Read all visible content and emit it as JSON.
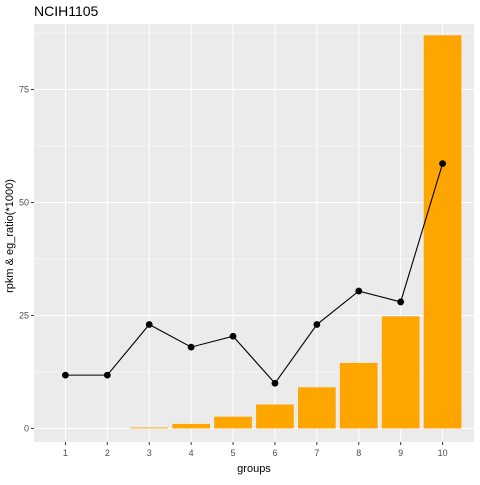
{
  "chart_data": {
    "type": "bar",
    "title": "NCIH1105",
    "xlabel": "groups",
    "ylabel": "rpkm & eg_ratio(*1000)",
    "categories": [
      "1",
      "2",
      "3",
      "4",
      "5",
      "6",
      "7",
      "8",
      "9",
      "10"
    ],
    "series": [
      {
        "type": "bar",
        "values": [
          0.0,
          0.0,
          0.2,
          1.0,
          2.6,
          5.3,
          9.1,
          14.5,
          24.8,
          87.0
        ]
      },
      {
        "type": "line",
        "values": [
          11.8,
          11.8,
          23.0,
          18.0,
          20.4,
          10.0,
          23.0,
          30.4,
          28.0,
          58.6
        ]
      }
    ],
    "yticks": [
      0,
      25,
      50,
      75
    ],
    "ylim": [
      -3,
      89.5
    ],
    "grid": true,
    "colors": {
      "bar": "#FFA500",
      "line": "#000000",
      "panel": "#EBEBEB",
      "grid": "#FFFFFF"
    }
  }
}
